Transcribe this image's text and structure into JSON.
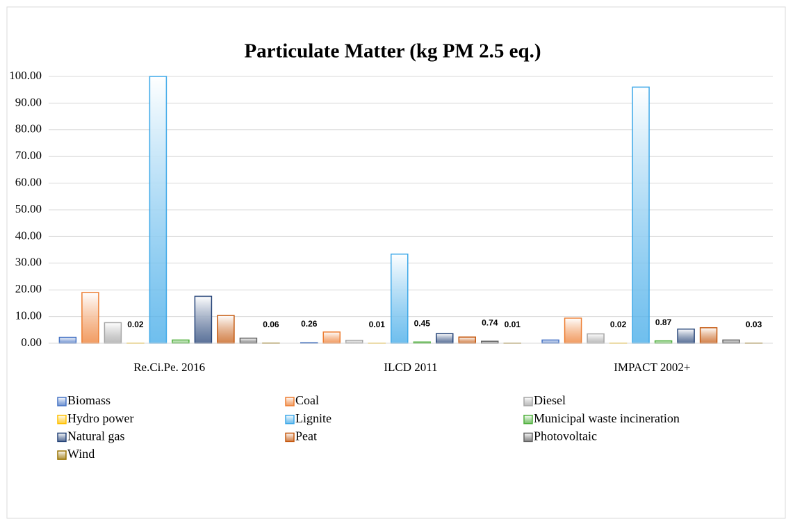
{
  "chart_data": {
    "type": "bar",
    "title": "Particulate Matter (kg PM 2.5 eq.)",
    "categories": [
      "Re.Ci.Pe. 2016",
      "ILCD 2011",
      "IMPACT 2002+"
    ],
    "ylim": [
      0,
      100
    ],
    "yticks": [
      {
        "value": 0,
        "label": "0.00"
      },
      {
        "value": 10,
        "label": "10.00"
      },
      {
        "value": 20,
        "label": "20.00"
      },
      {
        "value": 30,
        "label": "30.00"
      },
      {
        "value": 40,
        "label": "40.00"
      },
      {
        "value": 50,
        "label": "50.00"
      },
      {
        "value": 60,
        "label": "60.00"
      },
      {
        "value": 70,
        "label": "70.00"
      },
      {
        "value": 80,
        "label": "80.00"
      },
      {
        "value": 90,
        "label": "90.00"
      },
      {
        "value": 100,
        "label": "100.00"
      }
    ],
    "grid": true,
    "legend": "bottom",
    "series": [
      {
        "name": "Biomass",
        "color": "#4472c4",
        "values": [
          2.2,
          0.26,
          1.2
        ],
        "value_labels": [
          null,
          "0.26",
          null
        ]
      },
      {
        "name": "Coal",
        "color": "#ed7d31",
        "values": [
          19,
          4.2,
          9.4
        ]
      },
      {
        "name": "Diesel",
        "color": "#a5a5a5",
        "values": [
          7.7,
          1.1,
          3.5
        ]
      },
      {
        "name": "Hydro power",
        "color": "#ffc000",
        "values": [
          0.02,
          0.01,
          0.02
        ],
        "value_labels": [
          "0.02",
          "0.01",
          "0.02"
        ]
      },
      {
        "name": "Lignite",
        "color": "#3fa9e8",
        "values": [
          100,
          33.4,
          96
        ]
      },
      {
        "name": "Municipal waste incineration",
        "color": "#4fb03c",
        "values": [
          1.2,
          0.45,
          0.87
        ],
        "value_labels": [
          null,
          "0.45",
          "0.87"
        ]
      },
      {
        "name": "Natural gas",
        "color": "#264478",
        "values": [
          17.6,
          3.6,
          5.3
        ]
      },
      {
        "name": "Peat",
        "color": "#c55a11",
        "values": [
          10.4,
          2.3,
          5.8
        ]
      },
      {
        "name": "Photovoltaic",
        "color": "#636363",
        "values": [
          1.9,
          0.74,
          1.2
        ],
        "value_labels": [
          null,
          "0.74",
          null
        ]
      },
      {
        "name": "Wind",
        "color": "#997300",
        "values": [
          0.06,
          0.01,
          0.03
        ],
        "value_labels": [
          "0.06",
          "0.01",
          "0.03"
        ]
      }
    ]
  }
}
